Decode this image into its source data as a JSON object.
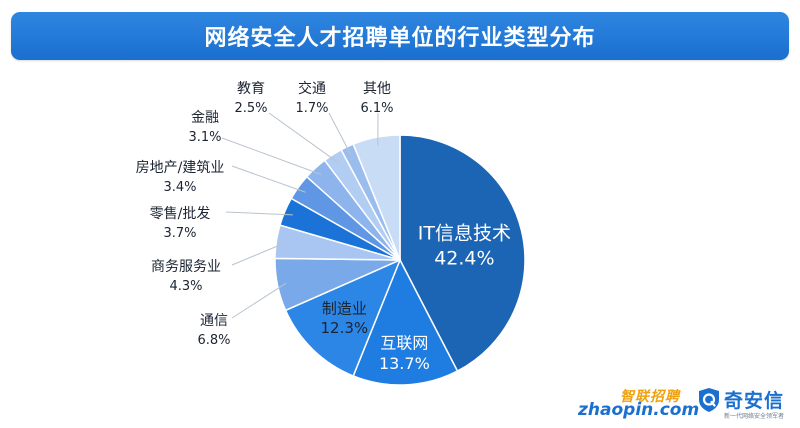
{
  "chart_data": {
    "type": "pie",
    "title": "网络安全人才招聘单位的行业类型分布",
    "slices": [
      {
        "label": "IT信息技术",
        "value": 42.4,
        "value_text": "42.4%",
        "color": "#1c64b4"
      },
      {
        "label": "互联网",
        "value": 13.7,
        "value_text": "13.7%",
        "color": "#1f7ce0"
      },
      {
        "label": "制造业",
        "value": 12.3,
        "value_text": "12.3%",
        "color": "#2c86e6"
      },
      {
        "label": "通信",
        "value": 6.8,
        "value_text": "6.8%",
        "color": "#7aa9ea"
      },
      {
        "label": "商务服务业",
        "value": 4.3,
        "value_text": "4.3%",
        "color": "#a9c5f1"
      },
      {
        "label": "零售/批发",
        "value": 3.7,
        "value_text": "3.7%",
        "color": "#1b73d8"
      },
      {
        "label": "房地产/建筑业",
        "value": 3.4,
        "value_text": "3.4%",
        "color": "#5f97e4"
      },
      {
        "label": "金融",
        "value": 3.1,
        "value_text": "3.1%",
        "color": "#8db4ec"
      },
      {
        "label": "教育",
        "value": 2.5,
        "value_text": "2.5%",
        "color": "#b2cdf2"
      },
      {
        "label": "交通",
        "value": 1.7,
        "value_text": "1.7%",
        "color": "#9bbdee"
      },
      {
        "label": "其他",
        "value": 6.1,
        "value_text": "6.1%",
        "color": "#c9dcf6"
      }
    ]
  },
  "logos": {
    "zhaopin_cn": "智联招聘",
    "zhaopin_en": "zhaopin.com",
    "qax_name": "奇安信",
    "qax_slogan": "新一代网络安全领军者"
  }
}
